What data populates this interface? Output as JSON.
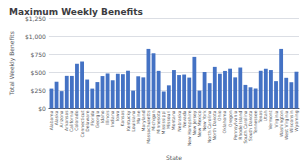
{
  "chart_data": {
    "type": "bar",
    "title": "Maximum Weekly Benefits",
    "xlabel": "State",
    "ylabel": "Total Weekly Benefits",
    "categories": [
      "Alabama",
      "Alaska",
      "Arizona",
      "Arkansas",
      "California",
      "Colorado",
      "Connecticut",
      "Delaware",
      "Florida",
      "Georgia",
      "Idaho",
      "Illinois",
      "Indiana",
      "Iowa",
      "Kansas",
      "Kentucky",
      "Louisiana",
      "Maine",
      "Maryland",
      "Massachusetts",
      "Michigan",
      "Minnesota",
      "Mississippi",
      "Missouri",
      "Montana",
      "Nebraska",
      "Nevada",
      "New Hampshire",
      "New Jersey",
      "New Mexico",
      "New York",
      "North Carolina",
      "North Dakota",
      "Ohio",
      "Oklahoma",
      "Oregon",
      "Pennsylvania",
      "Rhode Island",
      "South Carolina",
      "South Dakota",
      "Tennessee",
      "Texas",
      "Utah",
      "Vermont",
      "Virginia",
      "Washington",
      "West Virginia",
      "Wisconsin",
      "Wyoming"
    ],
    "values": [
      275,
      370,
      240,
      451,
      450,
      618,
      649,
      400,
      275,
      365,
      448,
      484,
      390,
      480,
      474,
      522,
      247,
      445,
      430,
      823,
      763,
      520,
      235,
      320,
      531,
      462,
      469,
      427,
      713,
      247,
      504,
      350,
      575,
      480,
      519,
      550,
      430,
      566,
      326,
      293,
      275,
      521,
      549,
      531,
      378,
      823,
      424,
      363,
      508
    ],
    "color": "#4472C4",
    "ylim": [
      0,
      1250
    ],
    "yticks": [
      {
        "value": 0,
        "label": "$0"
      },
      {
        "value": 250,
        "label": "$250"
      },
      {
        "value": 500,
        "label": "$500"
      },
      {
        "value": 750,
        "label": "$750"
      },
      {
        "value": 1000,
        "label": "$1,000"
      },
      {
        "value": 1250,
        "label": "$1,250"
      }
    ],
    "grid": true
  }
}
